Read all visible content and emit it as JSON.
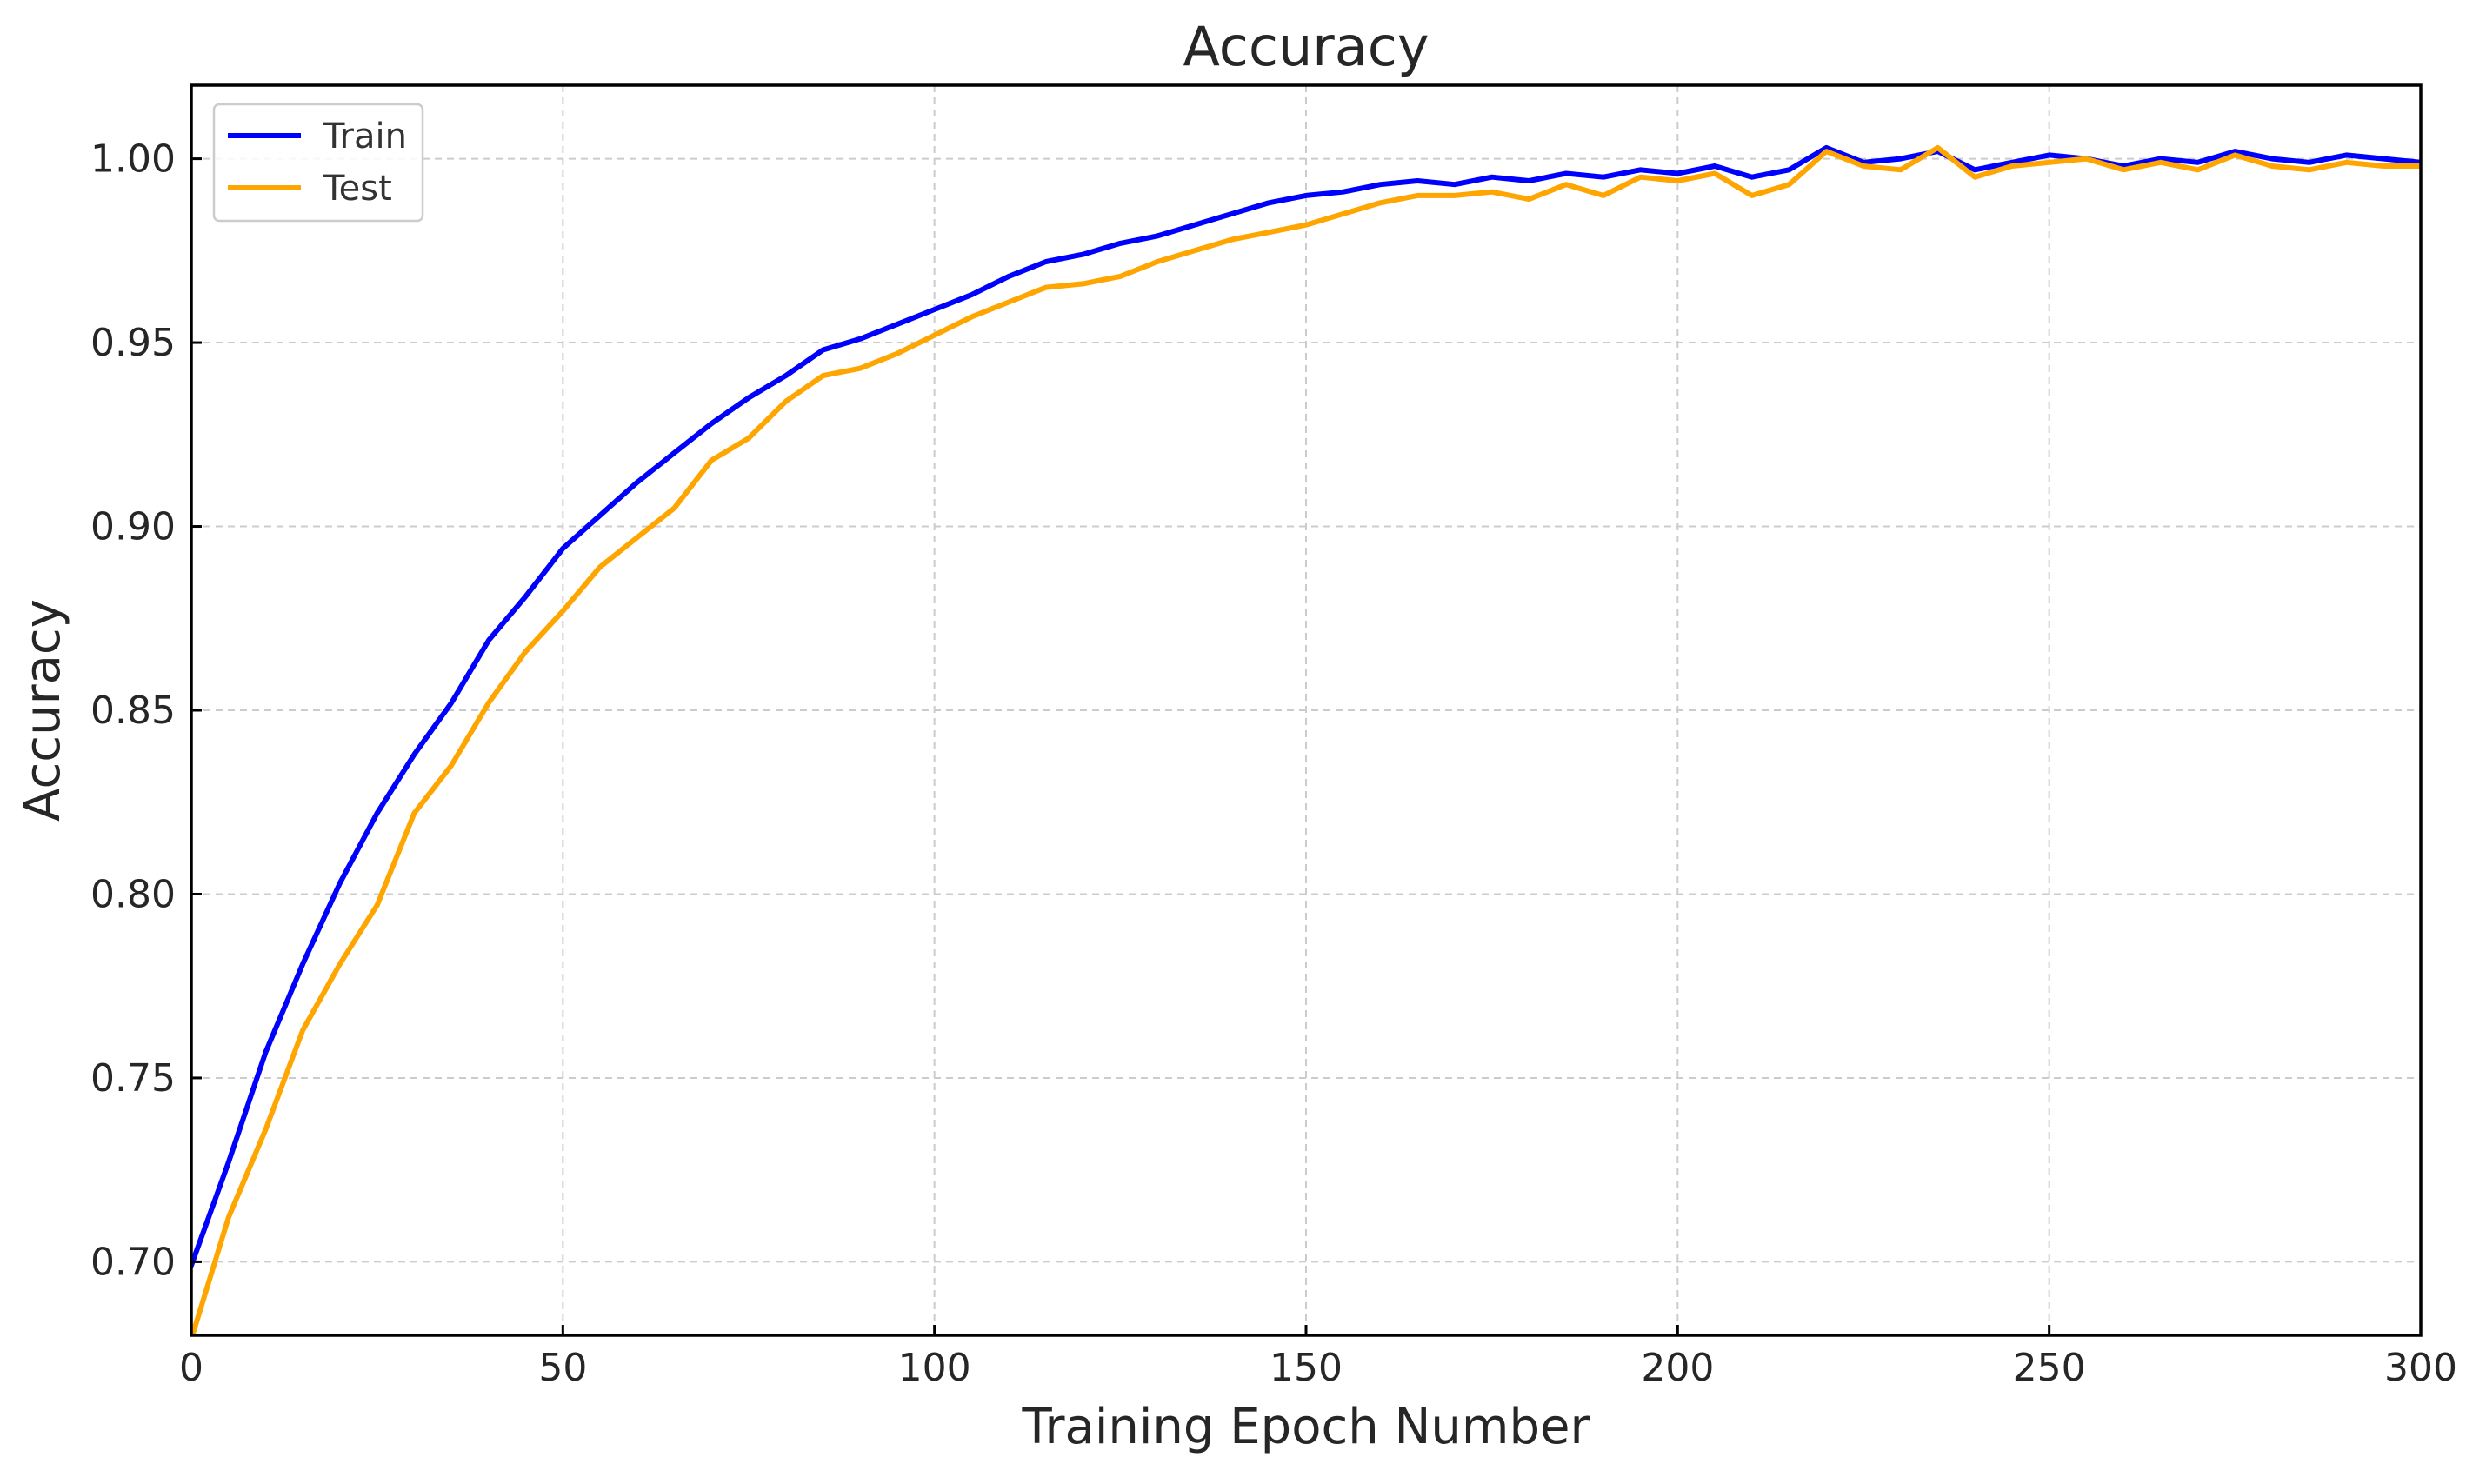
{
  "chart_data": {
    "type": "line",
    "title": "Accuracy",
    "xlabel": "Training Epoch Number",
    "ylabel": "Accuracy",
    "xlim": [
      0,
      300
    ],
    "ylim": [
      0.68,
      1.02
    ],
    "xticks": [
      0,
      50,
      100,
      150,
      200,
      250,
      300
    ],
    "xtick_labels": [
      "0",
      "50",
      "100",
      "150",
      "200",
      "250",
      "300"
    ],
    "yticks": [
      0.7,
      0.75,
      0.8,
      0.85,
      0.9,
      0.95,
      1.0
    ],
    "ytick_labels": [
      "0.70",
      "0.75",
      "0.80",
      "0.85",
      "0.90",
      "0.95",
      "1.00"
    ],
    "grid": true,
    "legend_position": "top-left",
    "series": [
      {
        "name": "Train",
        "color": "#0000ff",
        "x": [
          0,
          5,
          10,
          15,
          20,
          25,
          30,
          35,
          40,
          45,
          50,
          55,
          60,
          65,
          70,
          75,
          80,
          85,
          90,
          95,
          100,
          105,
          110,
          115,
          120,
          125,
          130,
          135,
          140,
          145,
          150,
          155,
          160,
          165,
          170,
          175,
          180,
          185,
          190,
          195,
          200,
          205,
          210,
          215,
          220,
          225,
          230,
          235,
          240,
          245,
          250,
          255,
          260,
          265,
          270,
          275,
          280,
          285,
          290,
          295,
          300
        ],
        "y": [
          0.699,
          0.727,
          0.757,
          0.781,
          0.803,
          0.822,
          0.838,
          0.852,
          0.869,
          0.881,
          0.894,
          0.903,
          0.912,
          0.92,
          0.928,
          0.935,
          0.941,
          0.948,
          0.951,
          0.955,
          0.959,
          0.963,
          0.968,
          0.972,
          0.974,
          0.977,
          0.979,
          0.982,
          0.985,
          0.988,
          0.99,
          0.991,
          0.993,
          0.994,
          0.993,
          0.995,
          0.994,
          0.996,
          0.995,
          0.997,
          0.996,
          0.998,
          0.995,
          0.997,
          1.003,
          0.999,
          1.0,
          1.002,
          0.997,
          0.999,
          1.001,
          1.0,
          0.998,
          1.0,
          0.999,
          1.002,
          1.0,
          0.999,
          1.001,
          1.0,
          0.999
        ]
      },
      {
        "name": "Test",
        "color": "#ffa500",
        "x": [
          0,
          5,
          10,
          15,
          20,
          25,
          30,
          35,
          40,
          45,
          50,
          55,
          60,
          65,
          70,
          75,
          80,
          85,
          90,
          95,
          100,
          105,
          110,
          115,
          120,
          125,
          130,
          135,
          140,
          145,
          150,
          155,
          160,
          165,
          170,
          175,
          180,
          185,
          190,
          195,
          200,
          205,
          210,
          215,
          220,
          225,
          230,
          235,
          240,
          245,
          250,
          255,
          260,
          265,
          270,
          275,
          280,
          285,
          290,
          295,
          300
        ],
        "y": [
          0.679,
          0.712,
          0.736,
          0.763,
          0.781,
          0.797,
          0.822,
          0.835,
          0.852,
          0.866,
          0.877,
          0.889,
          0.897,
          0.905,
          0.918,
          0.924,
          0.934,
          0.941,
          0.943,
          0.947,
          0.952,
          0.957,
          0.961,
          0.965,
          0.966,
          0.968,
          0.972,
          0.975,
          0.978,
          0.98,
          0.982,
          0.985,
          0.988,
          0.99,
          0.99,
          0.991,
          0.989,
          0.993,
          0.99,
          0.995,
          0.994,
          0.996,
          0.99,
          0.993,
          1.002,
          0.998,
          0.997,
          1.003,
          0.995,
          0.998,
          0.999,
          1.0,
          0.997,
          0.999,
          0.997,
          1.001,
          0.998,
          0.997,
          0.999,
          0.998,
          0.998
        ]
      }
    ]
  }
}
